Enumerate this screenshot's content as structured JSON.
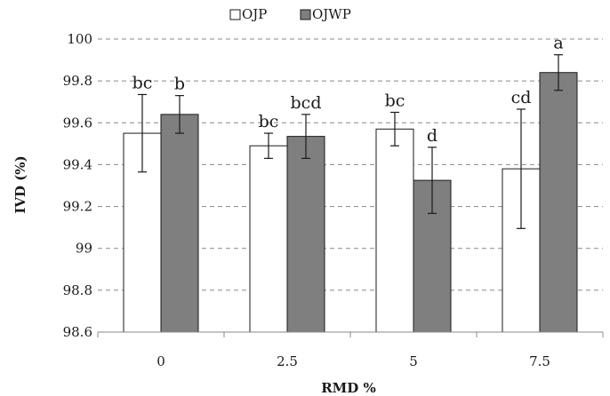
{
  "chart_data": {
    "type": "bar",
    "title": "",
    "xlabel": "RMD %",
    "ylabel": "IVD (%)",
    "categories": [
      "0",
      "2.5",
      "5",
      "7.5"
    ],
    "ylim": [
      98.6,
      100
    ],
    "yticks": [
      "98.6",
      "98.8",
      "99",
      "99.2",
      "99.4",
      "99.6",
      "99.8",
      "100"
    ],
    "grid": true,
    "legend_position": "top-center",
    "series": [
      {
        "name": "OJP",
        "color": "#ffffff",
        "values": [
          99.55,
          99.49,
          99.57,
          99.38
        ],
        "errors": [
          0.185,
          0.06,
          0.08,
          0.285
        ],
        "labels": [
          "bc",
          "bc",
          "bc",
          "cd"
        ]
      },
      {
        "name": "OJWP",
        "color": "#7f7f7f",
        "values": [
          99.64,
          99.535,
          99.325,
          99.84
        ],
        "errors": [
          0.09,
          0.105,
          0.158,
          0.085
        ],
        "labels": [
          "b",
          "bcd",
          "d",
          "a"
        ]
      }
    ]
  }
}
